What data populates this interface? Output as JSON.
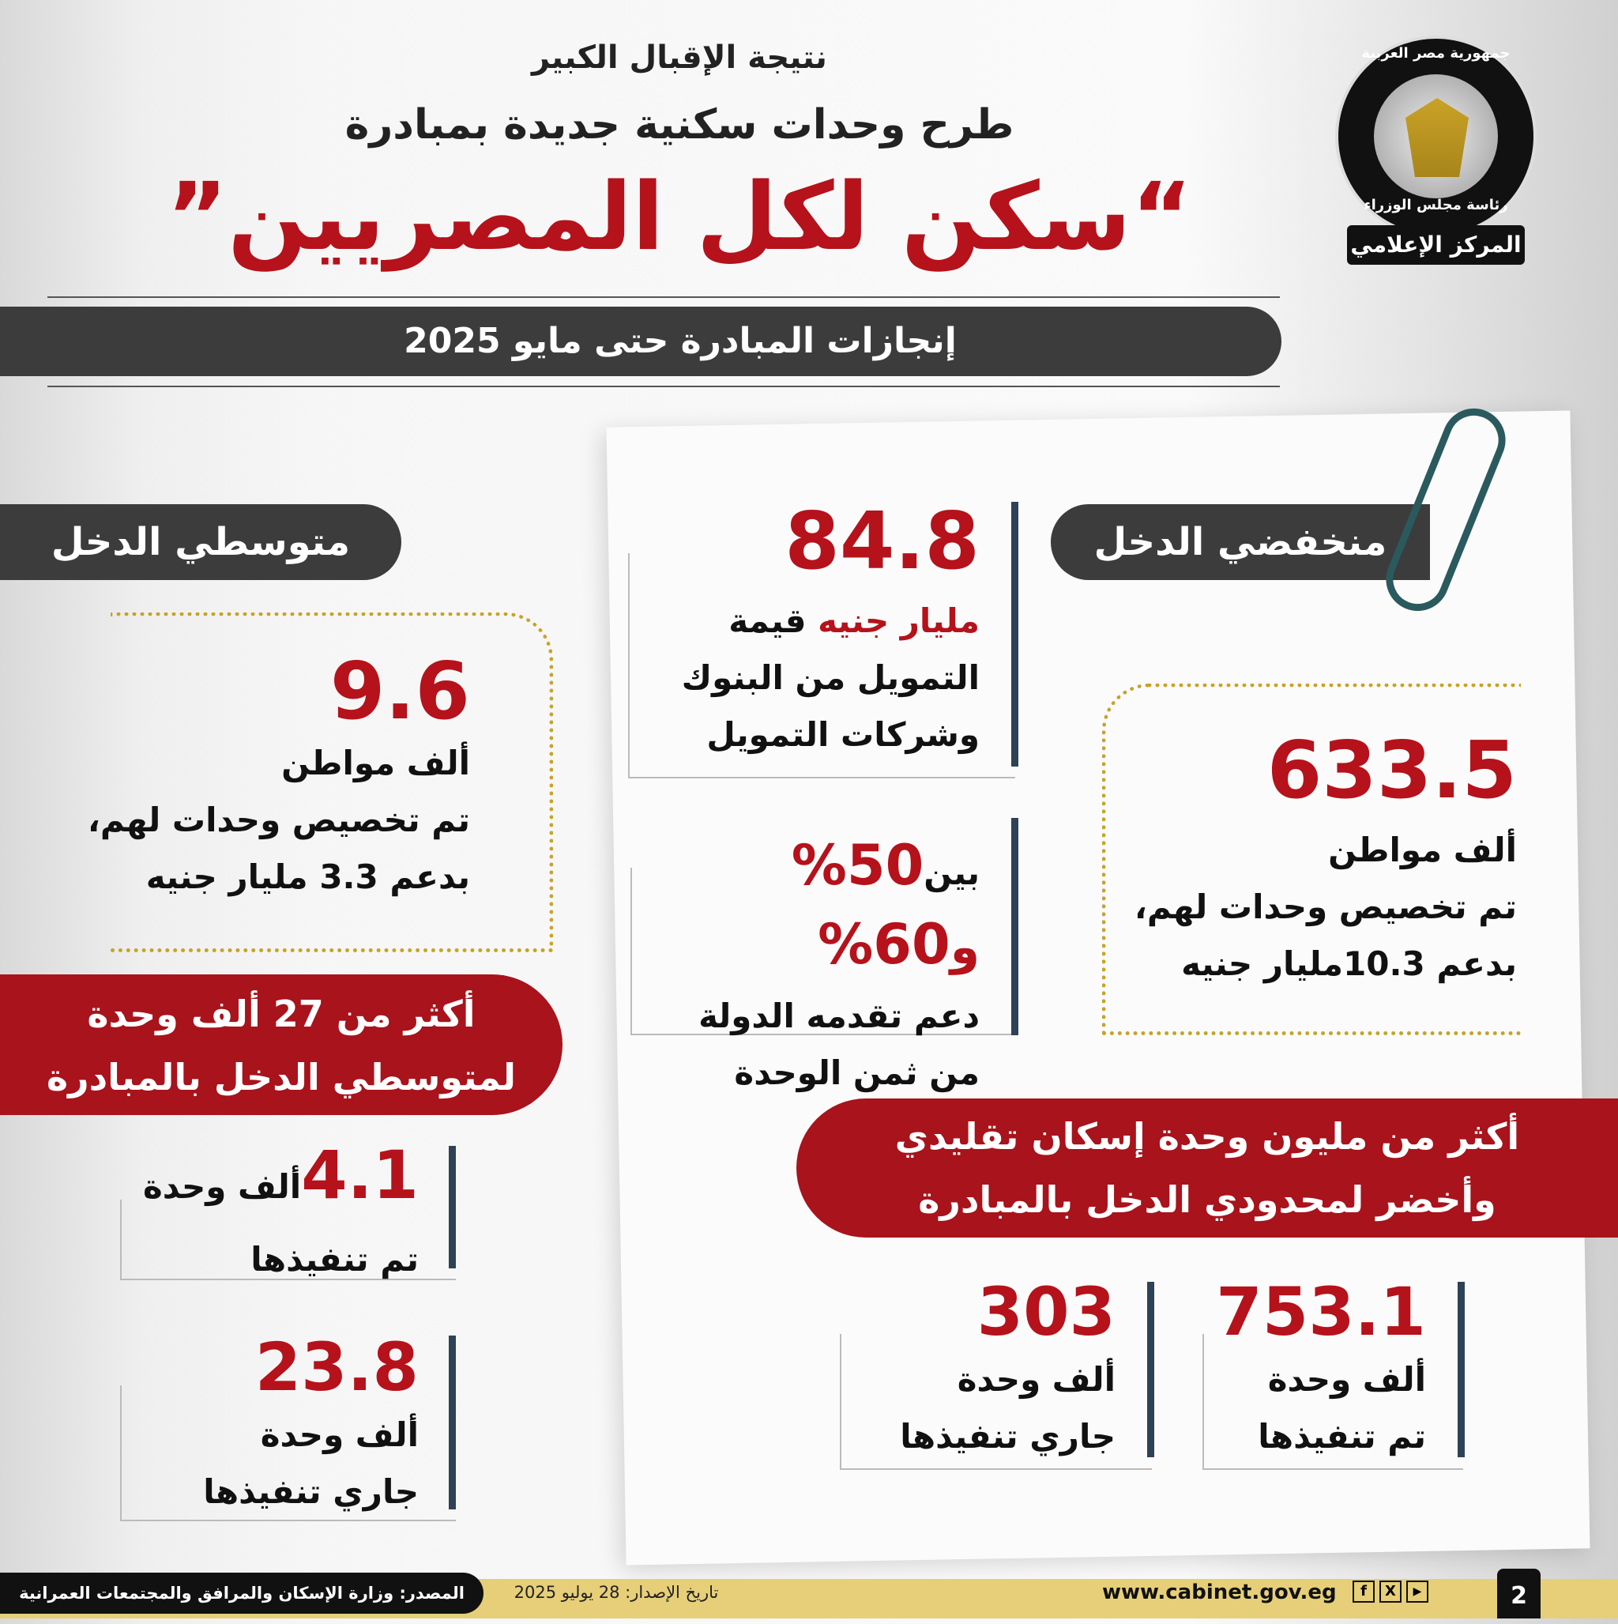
{
  "header": {
    "line1": "نتيجة الإقبال الكبير",
    "line2": "طرح وحدات سكنية جديدة بمبادرة",
    "title": "“سكن لكل المصريين”",
    "subtitle": "إنجازات المبادرة حتى مايو 2025"
  },
  "logo": {
    "top_text": "جمهورية مصر العربية",
    "middle_text": "رئاسة مجلس الوزراء",
    "bottom_text": "المركز الإعلامي"
  },
  "low_income": {
    "label": "منخفضي الدخل",
    "value": "633.5",
    "unit": "ألف مواطن",
    "desc1": "تم تخصيص وحدات لهم،",
    "desc2": "بدعم 10.3مليار جنيه"
  },
  "middle_income": {
    "label": "متوسطي الدخل",
    "value": "9.6",
    "unit": "ألف مواطن",
    "desc1": "تم تخصيص وحدات لهم،",
    "desc2": "بدعم 3.3 مليار جنيه"
  },
  "financing": {
    "value": "84.8",
    "unit": "مليار جنيه",
    "desc0": "قيمة",
    "desc1": "التمويل من البنوك",
    "desc2": "وشركات التمويل"
  },
  "support": {
    "prefix": "بين",
    "v1": "50%",
    "and": "و",
    "v2": "60%",
    "line2": "دعم تقدمه الدولة",
    "line3": "من ثمن الوحدة"
  },
  "middle_band": {
    "line1": "أكثر من 27 ألف وحدة",
    "line2": "لمتوسطي الدخل بالمبادرة"
  },
  "middle_units": [
    {
      "value": "4.1",
      "unit": "ألف وحدة",
      "desc": "تم تنفيذها"
    },
    {
      "value": "23.8",
      "unit": "ألف وحدة",
      "desc": "جاري تنفيذها"
    }
  ],
  "low_band": {
    "line1": "أكثر من مليون وحدة إسكان تقليدي",
    "line2": "وأخضر لمحدودي الدخل بالمبادرة"
  },
  "low_units": [
    {
      "value": "753.1",
      "unit": "ألف وحدة",
      "desc": "تم تنفيذها"
    },
    {
      "value": "303",
      "unit": "ألف وحدة",
      "desc": "جاري تنفيذها"
    }
  ],
  "footer": {
    "source": "المصدر: وزارة الإسكان والمرافق والمجتمعات العمرانية",
    "date": "تاريخ الإصدار: 28 يوليو 2025",
    "website": "www.cabinet.gov.eg",
    "page": "2",
    "social_icons": [
      "facebook-icon",
      "x-icon",
      "youtube-icon"
    ]
  },
  "colors": {
    "accent_red": "#b5121b",
    "dark": "#3c3c3c",
    "navy": "#2e4257",
    "gold": "#c9a227",
    "footer": "#e6cf78"
  }
}
